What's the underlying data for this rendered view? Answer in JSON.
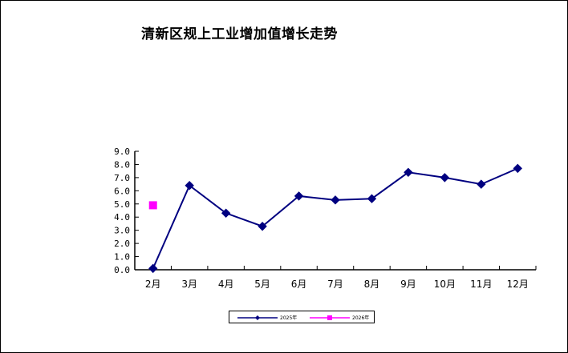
{
  "chart_data": {
    "type": "line",
    "title": "清新区规上工业增加值增长走势",
    "categories": [
      "2月",
      "3月",
      "4月",
      "5月",
      "6月",
      "7月",
      "8月",
      "9月",
      "10月",
      "11月",
      "12月"
    ],
    "y_ticks": [
      "0.0",
      "1.0",
      "2.0",
      "3.0",
      "4.0",
      "5.0",
      "6.0",
      "7.0",
      "8.0",
      "9.0"
    ],
    "ylim": [
      0,
      9
    ],
    "grid": false,
    "legend_position": "bottom",
    "series": [
      {
        "name": "2025年",
        "color": "#000080",
        "marker": "diamond",
        "values": [
          0.1,
          6.4,
          4.3,
          3.3,
          5.6,
          5.3,
          5.4,
          7.4,
          7.0,
          6.5,
          7.7
        ]
      },
      {
        "name": "2026年",
        "color": "#FF00FF",
        "marker": "square",
        "values": [
          4.9,
          null,
          null,
          null,
          null,
          null,
          null,
          null,
          null,
          null,
          null
        ]
      }
    ]
  }
}
